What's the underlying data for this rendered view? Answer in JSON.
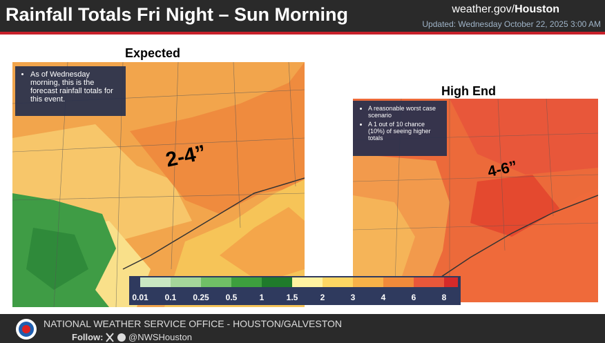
{
  "header": {
    "title": "Rainfall Totals Fri Night – Sun Morning",
    "site_prefix": "weather.gov/",
    "site_office": "Houston",
    "updated": "Updated: Wednesday October 22, 2025 3:00 AM"
  },
  "expected": {
    "heading": "Expected",
    "notes": [
      "As of Wednesday morning, this is the forecast rainfall totals for this event."
    ],
    "amount": "2-4”"
  },
  "high_end": {
    "heading": "High End",
    "notes": [
      "A reasonable worst case scenario",
      "A 1 out of 10 chance (10%) of seeing higher totals"
    ],
    "amount": "4-6”"
  },
  "legend": {
    "labels": [
      "0.01",
      "0.1",
      "0.25",
      "0.5",
      "1",
      "1.5",
      "2",
      "3",
      "4",
      "6",
      "8"
    ]
  },
  "footer": {
    "office": "NATIONAL WEATHER SERVICE OFFICE - HOUSTON/GALVESTON",
    "follow": "Follow:",
    "handle": "@NWSHouston"
  }
}
